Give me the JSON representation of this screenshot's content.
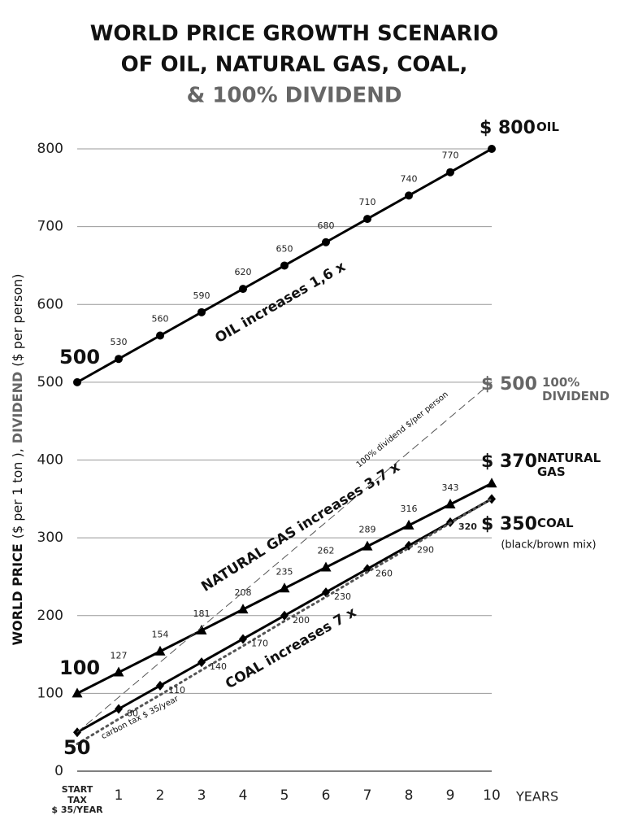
{
  "chart_data": {
    "type": "line",
    "title": [
      "WORLD PRICE GROWTH SCENARIO",
      "OF OIL, NATURAL GAS, COAL,",
      "& 100% DIVIDEND"
    ],
    "y_label": [
      "WORLD PRICE",
      "($ per 1 ton ),",
      "DIVIDEND",
      "($ per person)"
    ],
    "x_label": "YEARS",
    "categories": [
      "START\nTAX\n$ 35/YEAR",
      "1",
      "2",
      "3",
      "4",
      "5",
      "6",
      "7",
      "8",
      "9",
      "10"
    ],
    "ylim": [
      0,
      800
    ],
    "yticks": [
      0,
      100,
      200,
      300,
      400,
      500,
      600,
      700,
      800
    ],
    "grid": true,
    "series": [
      {
        "name": "OIL",
        "color": "#000000",
        "marker": "circle",
        "end_label": "$ 800",
        "values": [
          500,
          530,
          560,
          590,
          620,
          650,
          680,
          710,
          740,
          770,
          800
        ]
      },
      {
        "name": "NATURAL\nGAS",
        "color": "#000000",
        "marker": "triangle",
        "end_label": "$ 370",
        "values": [
          100,
          127,
          154,
          181,
          208,
          235,
          262,
          289,
          316,
          343,
          370
        ]
      },
      {
        "name": "COAL",
        "color": "#000000",
        "marker": "diamond",
        "end_label": "$ 350",
        "values": [
          50,
          80,
          110,
          140,
          170,
          200,
          230,
          260,
          290,
          320,
          350
        ]
      },
      {
        "name": "100%\nDIVIDEND",
        "color": "#555555",
        "dash": "dashed",
        "end_label": "$ 500",
        "values": [
          50,
          95,
          140,
          185,
          230,
          275,
          320,
          365,
          410,
          455,
          500
        ]
      },
      {
        "color": "#555555",
        "dash": "dotted",
        "values": [
          35,
          67,
          98,
          130,
          161,
          193,
          224,
          256,
          287,
          319,
          350
        ]
      }
    ],
    "annotations": [
      "OIL increases 1,6 x",
      "NATURAL GAS increases  3,7 x",
      "COAL increases 7 x",
      "100% dividend $/per person",
      "carbon tax $ 35/year",
      "(black/brown mix)"
    ]
  }
}
